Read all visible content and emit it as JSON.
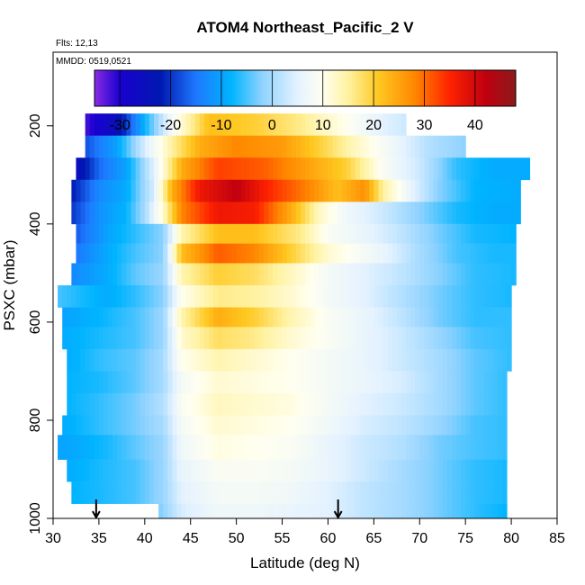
{
  "chart_data": {
    "type": "heatmap",
    "title": "ATOM4 Northeast_Pacific_2 V",
    "annotations": [
      "Flts: 12,13",
      "MMDD: 0519,0521"
    ],
    "xlabel": "Latitude (deg N)",
    "ylabel": "PSXC (mbar)",
    "xlim": [
      30,
      85
    ],
    "ylim": [
      1000,
      50
    ],
    "y_reversed": true,
    "x_ticks": [
      30,
      35,
      40,
      45,
      50,
      55,
      60,
      65,
      70,
      75,
      80,
      85
    ],
    "x_tick_labels": [
      "30",
      "35",
      "40",
      "45",
      "50",
      "55",
      "60",
      "65",
      "70",
      "75",
      "80",
      "85"
    ],
    "y_ticks": [
      200,
      400,
      600,
      800,
      1000
    ],
    "y_tick_labels": [
      "200",
      "400",
      "600",
      "800",
      "1000"
    ],
    "colorbar": {
      "range": [
        -35,
        48
      ],
      "ticks": [
        -30,
        -20,
        -10,
        0,
        10,
        20,
        30,
        40
      ],
      "tick_labels": [
        "-30",
        "-20",
        "-10",
        "0",
        "10",
        "20",
        "30",
        "40"
      ],
      "stops": [
        {
          "v": -35,
          "c": "#8a2be2"
        },
        {
          "v": -30,
          "c": "#1a00d0"
        },
        {
          "v": -22,
          "c": "#0018b0"
        },
        {
          "v": -15,
          "c": "#1e78ff"
        },
        {
          "v": -8,
          "c": "#00b4ff"
        },
        {
          "v": -2,
          "c": "#8ed2ff"
        },
        {
          "v": 5,
          "c": "#e4f2ff"
        },
        {
          "v": 10,
          "c": "#fffff0"
        },
        {
          "v": 15,
          "c": "#fff2a0"
        },
        {
          "v": 21,
          "c": "#ffc820"
        },
        {
          "v": 28,
          "c": "#ff8800"
        },
        {
          "v": 35,
          "c": "#ff2200"
        },
        {
          "v": 42,
          "c": "#c00010"
        },
        {
          "v": 48,
          "c": "#8b1a1a"
        }
      ]
    },
    "layers": [
      {
        "p_top": 175,
        "p_bot": 220,
        "lat_start": 33.5,
        "lat_end": 68.5,
        "profile": [
          [
            33.5,
            -32
          ],
          [
            37,
            -25
          ],
          [
            40,
            -8
          ],
          [
            43,
            8
          ],
          [
            47,
            22
          ],
          [
            52,
            20
          ],
          [
            57,
            16
          ],
          [
            62,
            10
          ],
          [
            66,
            5
          ],
          [
            68.5,
            3
          ]
        ]
      },
      {
        "p_top": 220,
        "p_bot": 265,
        "lat_start": 33.5,
        "lat_end": 75,
        "profile": [
          [
            33.5,
            -18
          ],
          [
            37,
            -10
          ],
          [
            40,
            4
          ],
          [
            43,
            15
          ],
          [
            46,
            24
          ],
          [
            50,
            28
          ],
          [
            55,
            26
          ],
          [
            59,
            20
          ],
          [
            63,
            13
          ],
          [
            67,
            7
          ],
          [
            71,
            1
          ],
          [
            75,
            -2
          ]
        ]
      },
      {
        "p_top": 265,
        "p_bot": 310,
        "lat_start": 32.5,
        "lat_end": 82,
        "profile": [
          [
            32.5,
            -26
          ],
          [
            35,
            -16
          ],
          [
            38,
            -10
          ],
          [
            41,
            5
          ],
          [
            44,
            24
          ],
          [
            48,
            33
          ],
          [
            53,
            31
          ],
          [
            58,
            25
          ],
          [
            62,
            20
          ],
          [
            66,
            9
          ],
          [
            70,
            3
          ],
          [
            74,
            -6
          ],
          [
            78,
            -9
          ],
          [
            82,
            -9
          ]
        ]
      },
      {
        "p_top": 310,
        "p_bot": 355,
        "lat_start": 32,
        "lat_end": 81,
        "profile": [
          [
            32,
            -22
          ],
          [
            35,
            -13
          ],
          [
            38,
            -9
          ],
          [
            41,
            4
          ],
          [
            43,
            24
          ],
          [
            46,
            37
          ],
          [
            50,
            42
          ],
          [
            54,
            34
          ],
          [
            58,
            28
          ],
          [
            61,
            22
          ],
          [
            64,
            27
          ],
          [
            66,
            15
          ],
          [
            69,
            6
          ],
          [
            72,
            -2
          ],
          [
            76,
            -8
          ],
          [
            81,
            -9
          ]
        ]
      },
      {
        "p_top": 355,
        "p_bot": 400,
        "lat_start": 32,
        "lat_end": 81,
        "profile": [
          [
            32,
            -20
          ],
          [
            35,
            -12
          ],
          [
            38,
            -8
          ],
          [
            40,
            0
          ],
          [
            42,
            12
          ],
          [
            44,
            28
          ],
          [
            48,
            37
          ],
          [
            52,
            36
          ],
          [
            56,
            24
          ],
          [
            59,
            13
          ],
          [
            62,
            7
          ],
          [
            66,
            3
          ],
          [
            70,
            -2
          ],
          [
            74,
            -7
          ],
          [
            78,
            -9
          ],
          [
            81,
            -9
          ]
        ]
      },
      {
        "p_top": 400,
        "p_bot": 440,
        "lat_start": 32.5,
        "lat_end": 80.5,
        "profile": [
          [
            32.5,
            -17
          ],
          [
            36,
            -10
          ],
          [
            39,
            -6
          ],
          [
            42,
            -2
          ],
          [
            44,
            14
          ],
          [
            48,
            22
          ],
          [
            52,
            22
          ],
          [
            57,
            16
          ],
          [
            60,
            9
          ],
          [
            64,
            6
          ],
          [
            68,
            2
          ],
          [
            72,
            -3
          ],
          [
            76,
            -7
          ],
          [
            80.5,
            -8
          ]
        ]
      },
      {
        "p_top": 440,
        "p_bot": 480,
        "lat_start": 32.5,
        "lat_end": 80.5,
        "profile": [
          [
            32.5,
            -15
          ],
          [
            36,
            -9
          ],
          [
            39,
            -5
          ],
          [
            42,
            -2
          ],
          [
            44,
            22
          ],
          [
            48,
            31
          ],
          [
            52,
            28
          ],
          [
            56,
            20
          ],
          [
            60,
            12
          ],
          [
            63,
            9
          ],
          [
            66,
            6
          ],
          [
            70,
            0
          ],
          [
            74,
            -5
          ],
          [
            78,
            -7
          ],
          [
            80.5,
            -7
          ]
        ]
      },
      {
        "p_top": 480,
        "p_bot": 525,
        "lat_start": 32,
        "lat_end": 80.5,
        "profile": [
          [
            32,
            -13
          ],
          [
            36,
            -9
          ],
          [
            39,
            -4
          ],
          [
            42,
            -1
          ],
          [
            44,
            14
          ],
          [
            48,
            20
          ],
          [
            52,
            18
          ],
          [
            56,
            13
          ],
          [
            60,
            8
          ],
          [
            64,
            5
          ],
          [
            68,
            2
          ],
          [
            72,
            -2
          ],
          [
            76,
            -6
          ],
          [
            80.5,
            -7
          ]
        ]
      },
      {
        "p_top": 525,
        "p_bot": 570,
        "lat_start": 30.5,
        "lat_end": 80,
        "profile": [
          [
            30.5,
            -5
          ],
          [
            33,
            -7
          ],
          [
            36,
            -9
          ],
          [
            39,
            -6
          ],
          [
            42,
            -2
          ],
          [
            44,
            10
          ],
          [
            48,
            16
          ],
          [
            52,
            15
          ],
          [
            56,
            12
          ],
          [
            60,
            8
          ],
          [
            64,
            5
          ],
          [
            68,
            1
          ],
          [
            72,
            -3
          ],
          [
            76,
            -6
          ],
          [
            80,
            -7
          ]
        ]
      },
      {
        "p_top": 570,
        "p_bot": 610,
        "lat_start": 31,
        "lat_end": 80,
        "profile": [
          [
            31,
            -10
          ],
          [
            35,
            -8
          ],
          [
            39,
            -5
          ],
          [
            42,
            -1
          ],
          [
            44,
            14
          ],
          [
            48,
            24
          ],
          [
            52,
            20
          ],
          [
            56,
            14
          ],
          [
            60,
            9
          ],
          [
            64,
            6
          ],
          [
            68,
            2
          ],
          [
            72,
            -3
          ],
          [
            76,
            -6
          ],
          [
            80,
            -6
          ]
        ]
      },
      {
        "p_top": 610,
        "p_bot": 655,
        "lat_start": 31,
        "lat_end": 80,
        "profile": [
          [
            31,
            -9
          ],
          [
            35,
            -7
          ],
          [
            39,
            -5
          ],
          [
            42,
            -1
          ],
          [
            44,
            12
          ],
          [
            48,
            18
          ],
          [
            52,
            16
          ],
          [
            56,
            12
          ],
          [
            60,
            9
          ],
          [
            64,
            6
          ],
          [
            68,
            3
          ],
          [
            72,
            -1
          ],
          [
            76,
            -5
          ],
          [
            80,
            -6
          ]
        ]
      },
      {
        "p_top": 655,
        "p_bot": 700,
        "lat_start": 31.5,
        "lat_end": 80,
        "profile": [
          [
            31.5,
            -9
          ],
          [
            35,
            -6
          ],
          [
            39,
            -4
          ],
          [
            42,
            0
          ],
          [
            44,
            10
          ],
          [
            48,
            14
          ],
          [
            52,
            12
          ],
          [
            56,
            10
          ],
          [
            60,
            8
          ],
          [
            64,
            6
          ],
          [
            68,
            3
          ],
          [
            72,
            0
          ],
          [
            76,
            -4
          ],
          [
            80,
            -6
          ]
        ]
      },
      {
        "p_top": 700,
        "p_bot": 745,
        "lat_start": 31.5,
        "lat_end": 79.5,
        "profile": [
          [
            31.5,
            -8
          ],
          [
            35,
            -7
          ],
          [
            39,
            -4
          ],
          [
            42,
            0
          ],
          [
            44,
            8
          ],
          [
            48,
            12
          ],
          [
            52,
            11
          ],
          [
            56,
            10
          ],
          [
            60,
            8
          ],
          [
            64,
            6
          ],
          [
            68,
            4
          ],
          [
            72,
            0
          ],
          [
            76,
            -4
          ],
          [
            79.5,
            -6
          ]
        ]
      },
      {
        "p_top": 745,
        "p_bot": 790,
        "lat_start": 31.5,
        "lat_end": 79.5,
        "profile": [
          [
            31.5,
            -8
          ],
          [
            35,
            -6
          ],
          [
            39,
            -3
          ],
          [
            42,
            1
          ],
          [
            44,
            9
          ],
          [
            48,
            13
          ],
          [
            52,
            12
          ],
          [
            56,
            11
          ],
          [
            60,
            8
          ],
          [
            64,
            5
          ],
          [
            68,
            3
          ],
          [
            72,
            0
          ],
          [
            76,
            -4
          ],
          [
            79.5,
            -6
          ]
        ]
      },
      {
        "p_top": 790,
        "p_bot": 830,
        "lat_start": 31,
        "lat_end": 79.5,
        "profile": [
          [
            31,
            -9
          ],
          [
            35,
            -6
          ],
          [
            39,
            -3
          ],
          [
            42,
            0
          ],
          [
            44,
            8
          ],
          [
            48,
            12
          ],
          [
            52,
            11
          ],
          [
            56,
            10
          ],
          [
            60,
            7
          ],
          [
            64,
            4
          ],
          [
            68,
            2
          ],
          [
            72,
            -1
          ],
          [
            76,
            -5
          ],
          [
            79.5,
            -6
          ]
        ]
      },
      {
        "p_top": 830,
        "p_bot": 880,
        "lat_start": 30.5,
        "lat_end": 79.5,
        "profile": [
          [
            30.5,
            -10
          ],
          [
            33,
            -9
          ],
          [
            36,
            -7
          ],
          [
            39,
            -4
          ],
          [
            42,
            -1
          ],
          [
            44,
            7
          ],
          [
            48,
            11
          ],
          [
            52,
            10
          ],
          [
            56,
            9
          ],
          [
            60,
            6
          ],
          [
            64,
            3
          ],
          [
            68,
            1
          ],
          [
            72,
            -3
          ],
          [
            76,
            -5
          ],
          [
            79.5,
            -6
          ]
        ]
      },
      {
        "p_top": 880,
        "p_bot": 925,
        "lat_start": 31.5,
        "lat_end": 79.5,
        "profile": [
          [
            31.5,
            -9
          ],
          [
            35,
            -7
          ],
          [
            39,
            -5
          ],
          [
            42,
            -1
          ],
          [
            44,
            6
          ],
          [
            48,
            9
          ],
          [
            52,
            9
          ],
          [
            56,
            8
          ],
          [
            60,
            6
          ],
          [
            64,
            3
          ],
          [
            68,
            0
          ],
          [
            72,
            -3
          ],
          [
            76,
            -6
          ],
          [
            79.5,
            -7
          ]
        ]
      },
      {
        "p_top": 925,
        "p_bot": 970,
        "lat_start": 32,
        "lat_end": 79.5,
        "profile": [
          [
            32,
            -8
          ],
          [
            35,
            -7
          ],
          [
            39,
            -5
          ],
          [
            42,
            -1
          ],
          [
            44,
            5
          ],
          [
            48,
            8
          ],
          [
            52,
            8
          ],
          [
            56,
            7
          ],
          [
            60,
            5
          ],
          [
            64,
            2
          ],
          [
            68,
            0
          ],
          [
            72,
            -3
          ],
          [
            76,
            -6
          ],
          [
            79.5,
            -7
          ]
        ]
      },
      {
        "p_top": 970,
        "p_bot": 1000,
        "lat_start": 41.5,
        "lat_end": 79.5,
        "profile": [
          [
            41.5,
            -3
          ],
          [
            44,
            4
          ],
          [
            48,
            7
          ],
          [
            52,
            7
          ],
          [
            56,
            6
          ],
          [
            60,
            5
          ],
          [
            64,
            2
          ],
          [
            68,
            0
          ],
          [
            72,
            -3
          ],
          [
            76,
            -6
          ],
          [
            79.5,
            -8
          ]
        ]
      }
    ],
    "markers": [
      {
        "lat": 34.7,
        "label": ""
      },
      {
        "lat": 61.1,
        "label": ""
      }
    ]
  }
}
